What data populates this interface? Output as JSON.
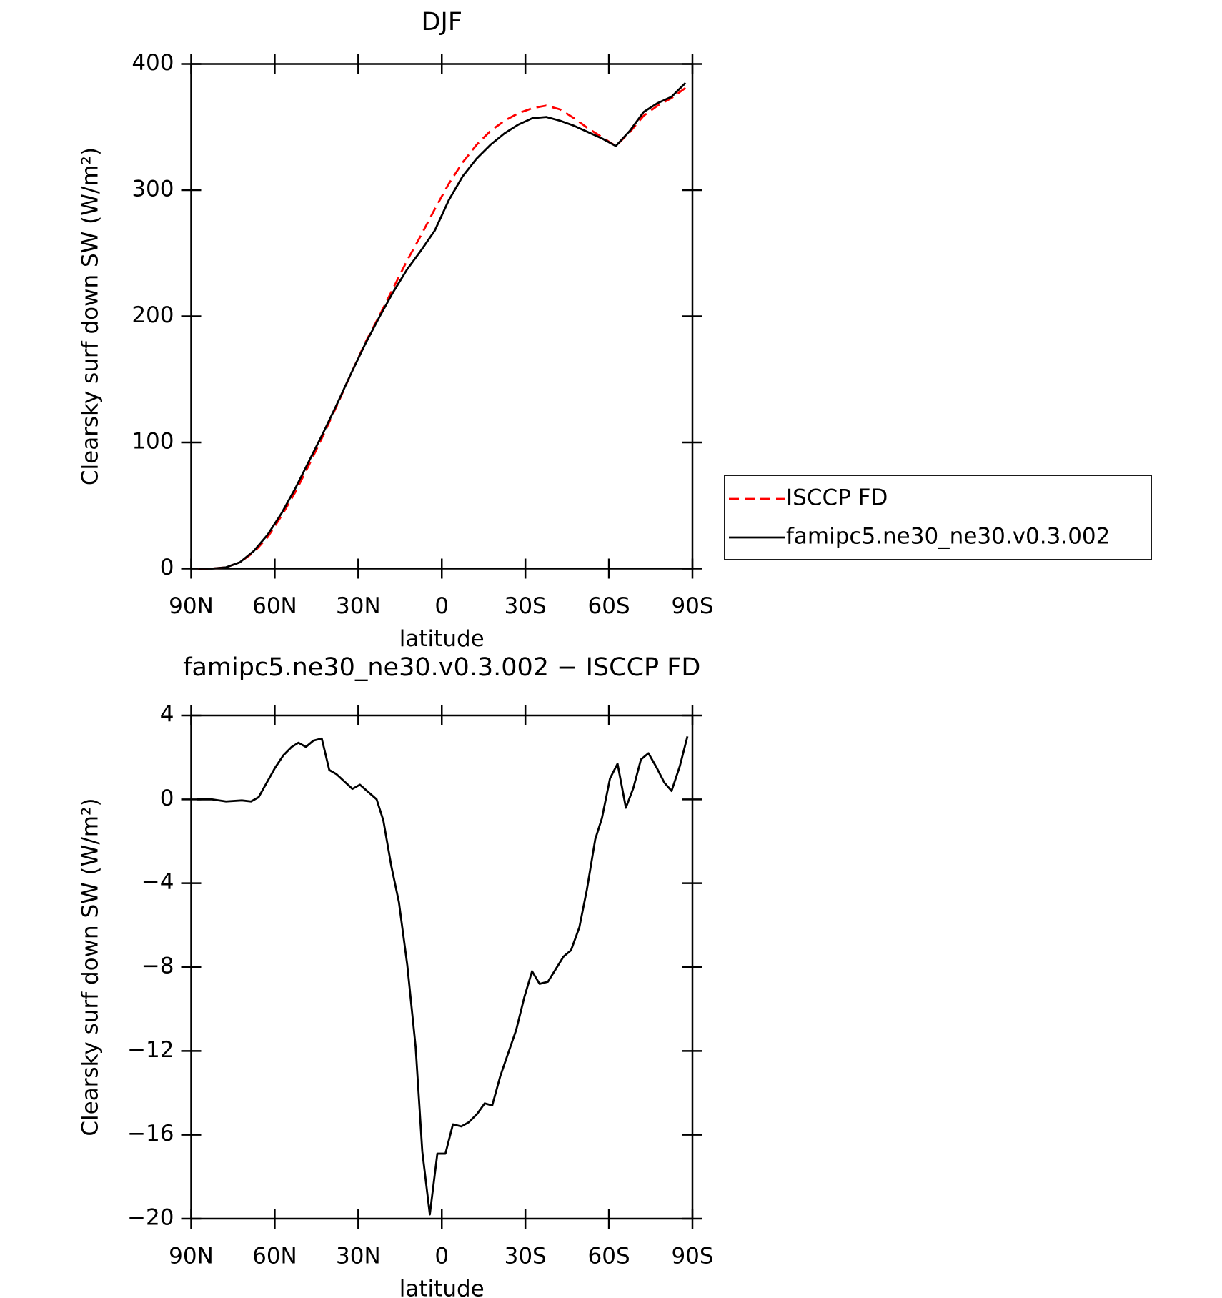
{
  "chart_data": [
    {
      "type": "line",
      "title": "DJF",
      "xlabel": "latitude",
      "ylabel": "Clearsky surf down SW (W/m²)",
      "xlim": [
        90,
        -90
      ],
      "xticks": [
        {
          "value": 90,
          "label": "90N"
        },
        {
          "value": 60,
          "label": "60N"
        },
        {
          "value": 30,
          "label": "30N"
        },
        0,
        {
          "value": -30,
          "label": "30S"
        },
        {
          "value": -60,
          "label": "60S"
        },
        {
          "value": -90,
          "label": "90S"
        }
      ],
      "ylim": [
        0,
        400
      ],
      "yticks": [
        0,
        100,
        200,
        300,
        400
      ],
      "legend": "right",
      "x": [
        87.5,
        82.5,
        77.5,
        72.5,
        67.5,
        62.5,
        57.5,
        52.5,
        47.5,
        42.5,
        37.5,
        32.5,
        27.5,
        22.5,
        17.5,
        12.5,
        7.5,
        2.5,
        -2.5,
        -7.5,
        -12.5,
        -17.5,
        -22.5,
        -27.5,
        -32.5,
        -37.5,
        -42.5,
        -47.5,
        -52.5,
        -57.5,
        -62.5,
        -67.5,
        -72.5,
        -77.5,
        -82.5,
        -87.5
      ],
      "series": [
        {
          "name": "ISCCP FD",
          "color": "#ff0000",
          "linestyle": "dashed",
          "values": [
            0,
            0,
            1,
            5,
            13,
            25,
            42,
            61,
            83,
            106,
            130,
            155,
            179,
            200,
            222,
            244,
            264,
            285,
            305,
            322,
            336,
            347,
            355,
            361,
            365,
            367,
            364,
            357,
            349,
            342,
            335,
            346,
            359,
            367,
            373,
            381
          ]
        },
        {
          "name": "famipc5.ne30_ne30.v0.3.002",
          "color": "#000000",
          "linestyle": "solid",
          "values": [
            0,
            0,
            1,
            5,
            14,
            27,
            44,
            64,
            86,
            108,
            131,
            155,
            178,
            199,
            219,
            237,
            252,
            268,
            292,
            311,
            325,
            336,
            345,
            352,
            357,
            358,
            355,
            351,
            346,
            341,
            335,
            347,
            362,
            369,
            374,
            385
          ]
        }
      ]
    },
    {
      "type": "line",
      "title": "famipc5.ne30_ne30.v0.3.002 − ISCCP FD",
      "xlabel": "latitude",
      "ylabel": "Clearsky surf down SW (W/m²)",
      "xlim": [
        90,
        -90
      ],
      "xticks": [
        {
          "value": 90,
          "label": "90N"
        },
        {
          "value": 60,
          "label": "60N"
        },
        {
          "value": 30,
          "label": "30N"
        },
        0,
        {
          "value": -30,
          "label": "30S"
        },
        {
          "value": -60,
          "label": "60S"
        },
        {
          "value": -90,
          "label": "90S"
        }
      ],
      "ylim": [
        -20,
        4
      ],
      "yticks": [
        {
          "value": -20,
          "label": "−20"
        },
        {
          "value": -16,
          "label": "−16"
        },
        {
          "value": -12,
          "label": "−12"
        },
        {
          "value": -8,
          "label": "−8"
        },
        {
          "value": -4,
          "label": "−4"
        },
        0,
        4
      ],
      "color": "#000000",
      "x": [
        87.9,
        82.5,
        77.5,
        71.8,
        68.5,
        65.8,
        59.9,
        56.9,
        53.9,
        51.5,
        48.8,
        46.1,
        43.1,
        40.4,
        37.8,
        32.1,
        29.4,
        26.4,
        23.4,
        21.0,
        18.1,
        15.4,
        12.4,
        9.4,
        7.0,
        4.3,
        1.6,
        -1.3,
        -4.0,
        -7.0,
        -9.7,
        -12.7,
        -15.4,
        -18.1,
        -21.0,
        -26.7,
        -29.7,
        -32.4,
        -35.1,
        -38.1,
        -43.7,
        -46.4,
        -49.4,
        -52.1,
        -55.1,
        -57.5,
        -60.4,
        -63.1,
        -66.1,
        -68.8,
        -71.5,
        -74.2,
        -77.2,
        -79.9,
        -82.5,
        -85.5,
        -88.2
      ],
      "values": [
        0,
        0,
        -0.1,
        -0.05,
        -0.1,
        0.1,
        1.5,
        2.1,
        2.5,
        2.7,
        2.5,
        2.8,
        2.9,
        1.4,
        1.2,
        0.5,
        0.7,
        0.35,
        0,
        -1.0,
        -3.2,
        -4.9,
        -7.9,
        -11.8,
        -16.8,
        -19.8,
        -16.9,
        -16.9,
        -15.5,
        -15.6,
        -15.4,
        -15.0,
        -14.5,
        -14.6,
        -13.2,
        -11.0,
        -9.4,
        -8.2,
        -8.8,
        -8.7,
        -7.5,
        -7.2,
        -6.1,
        -4.3,
        -1.9,
        -0.9,
        1.0,
        1.7,
        -0.4,
        0.55,
        1.9,
        2.2,
        1.5,
        0.8,
        0.4,
        1.6,
        3.0
      ]
    }
  ]
}
